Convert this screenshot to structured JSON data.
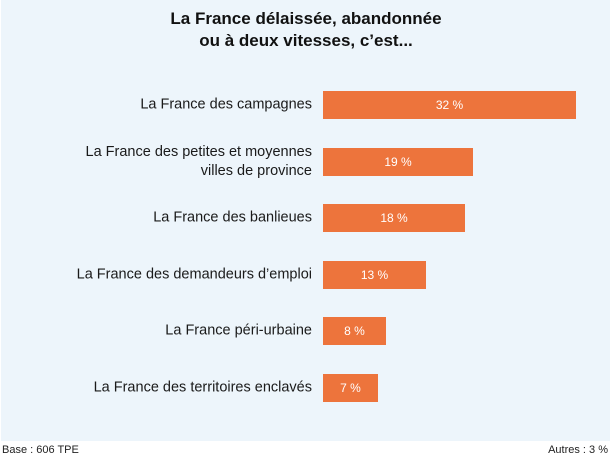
{
  "chart_data": {
    "type": "bar",
    "orientation": "horizontal",
    "title": "La France délaissée, abandonnée ou à deux vitesses, c'est...",
    "title_lines": [
      "La France délaissée, abandonnée",
      "ou à deux vitesses, c’est..."
    ],
    "categories": [
      "La France des campagnes",
      "La France des petites et moyennes\nvilles de province",
      "La France des banlieues",
      "La France des demandeurs d’emploi",
      "La France péri-urbaine",
      "La France des territoires enclavés"
    ],
    "values": [
      32,
      19,
      18,
      13,
      8,
      7
    ],
    "value_labels": [
      "32 %",
      "19 %",
      "18 %",
      "13 %",
      "8 %",
      "7 %"
    ],
    "unit": "%",
    "xlabel": "",
    "ylabel": "",
    "xlim": [
      0,
      32
    ],
    "grid": false,
    "bar_color": "#ed743c",
    "background_color": "#edf5fb"
  },
  "footer": {
    "base": "Base : 606 TPE",
    "others": "Autres : 3 %"
  }
}
